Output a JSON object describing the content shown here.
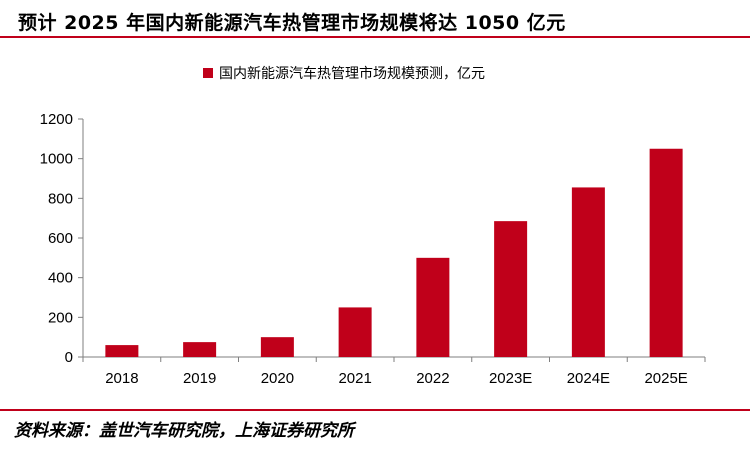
{
  "header": {
    "title": "预计 2025 年国内新能源汽车热管理市场规模将达 1050 亿元"
  },
  "footer": {
    "source": "资料来源：盖世汽车研究院，上海证券研究所"
  },
  "chart_data": {
    "type": "bar",
    "title": "预计 2025 年国内新能源汽车热管理市场规模将达 1050 亿元",
    "categories": [
      "2018",
      "2019",
      "2020",
      "2021",
      "2022",
      "2023E",
      "2024E",
      "2025E"
    ],
    "series": [
      {
        "name": "国内新能源汽车热管理市场规模预测，亿元",
        "values": [
          60,
          75,
          100,
          250,
          500,
          685,
          855,
          1050
        ],
        "color": "#c0001a"
      }
    ],
    "ylim": [
      0,
      1200
    ],
    "yticks": [
      0,
      200,
      400,
      600,
      800,
      1000,
      1200
    ],
    "grid": false,
    "legend": "top-center",
    "xlabel": "",
    "ylabel": ""
  }
}
